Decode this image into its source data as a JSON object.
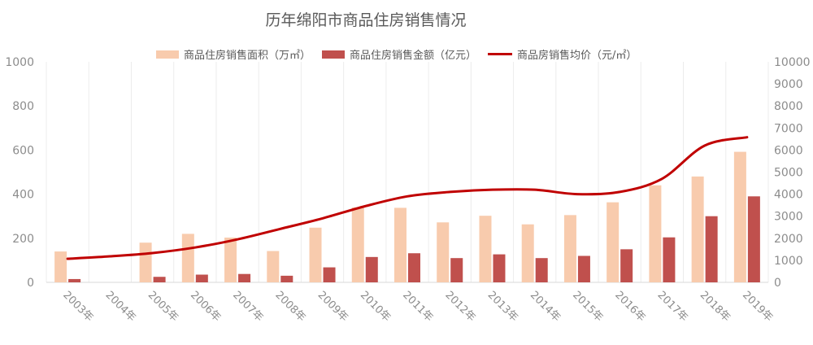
{
  "chart_data": {
    "type": "bar",
    "title": "历年绵阳市商品住房销售情况",
    "categories": [
      "2003年",
      "2004年",
      "2005年",
      "2006年",
      "2007年",
      "2008年",
      "2009年",
      "2010年",
      "2011年",
      "2012年",
      "2013年",
      "2014年",
      "2015年",
      "2016年",
      "2017年",
      "2018年",
      "2019年"
    ],
    "ylim_left": [
      0,
      1000
    ],
    "yticks_left": [
      "0",
      "200",
      "400",
      "600",
      "800",
      "1000"
    ],
    "ylim_right": [
      0,
      10000
    ],
    "yticks_right": [
      "0",
      "1000",
      "2000",
      "3000",
      "4000",
      "5000",
      "6000",
      "7000",
      "8000",
      "9000",
      "10000"
    ],
    "grid": "vertical",
    "legend_position": "top",
    "series": [
      {
        "name": "商品住房销售面积（万㎡）",
        "type": "bar",
        "axis": "left",
        "color": "#F8CBAD",
        "values": [
          140,
          null,
          180,
          220,
          203,
          142,
          248,
          340,
          338,
          272,
          302,
          263,
          305,
          363,
          440,
          480,
          592
        ]
      },
      {
        "name": "商品住房销售金额（亿元）",
        "type": "bar",
        "axis": "left",
        "color": "#C0504D",
        "values": [
          15,
          null,
          25,
          35,
          38,
          30,
          68,
          115,
          132,
          110,
          127,
          110,
          120,
          150,
          204,
          300,
          390
        ]
      },
      {
        "name": "商品房销售均价（元/㎡）",
        "type": "line",
        "axis": "right",
        "color": "#C00000",
        "values": [
          1070,
          1180,
          1330,
          1580,
          1950,
          2420,
          2900,
          3450,
          3900,
          4100,
          4200,
          4200,
          4000,
          4100,
          4700,
          6200,
          6580
        ]
      }
    ]
  }
}
